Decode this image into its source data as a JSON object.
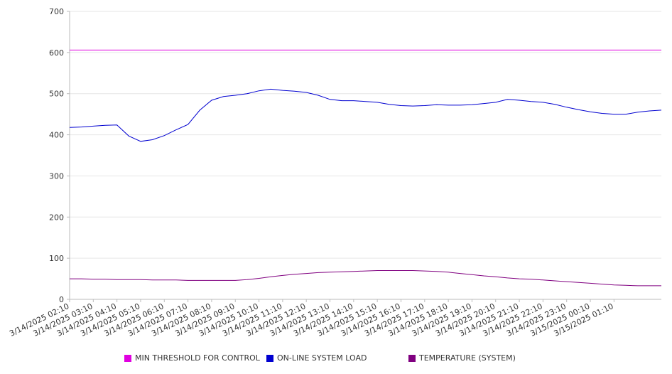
{
  "chart_data": {
    "type": "line",
    "ylim": [
      0,
      700
    ],
    "yticks": [
      0,
      100,
      200,
      300,
      400,
      500,
      600,
      700
    ],
    "grid": "horizontal",
    "legend_position": "bottom",
    "x_ticks": [
      "3/14/2025 02:10",
      "3/14/2025 03:10",
      "3/14/2025 04:10",
      "3/14/2025 05:10",
      "3/14/2025 06:10",
      "3/14/2025 07:10",
      "3/14/2025 08:10",
      "3/14/2025 09:10",
      "3/14/2025 10:10",
      "3/14/2025 11:10",
      "3/14/2025 12:10",
      "3/14/2025 13:10",
      "3/14/2025 14:10",
      "3/14/2025 15:10",
      "3/14/2025 16:10",
      "3/14/2025 17:10",
      "3/14/2025 18:10",
      "3/14/2025 19:10",
      "3/14/2025 20:10",
      "3/14/2025 21:10",
      "3/14/2025 22:10",
      "3/14/2025 23:10",
      "3/15/2025 00:10",
      "3/15/2025 01:10"
    ],
    "x": [
      "02:10",
      "02:40",
      "03:10",
      "03:40",
      "04:10",
      "04:20",
      "04:40",
      "05:10",
      "05:40",
      "06:10",
      "06:30",
      "06:40",
      "07:10",
      "07:40",
      "08:10",
      "08:40",
      "09:10",
      "09:40",
      "10:10",
      "10:40",
      "11:10",
      "11:40",
      "12:10",
      "12:40",
      "13:10",
      "13:40",
      "14:10",
      "14:40",
      "15:10",
      "15:40",
      "16:10",
      "16:40",
      "17:10",
      "17:40",
      "18:10",
      "18:40",
      "19:10",
      "19:40",
      "20:10",
      "20:40",
      "21:10",
      "21:40",
      "22:10",
      "22:40",
      "23:10",
      "23:40",
      "00:10",
      "00:40",
      "01:10",
      "01:40",
      "02:10"
    ],
    "series": [
      {
        "name": "MIN THRESHOLD FOR CONTROL",
        "color": "#e000e0",
        "values": [
          606,
          606,
          606,
          606,
          606,
          606,
          606,
          606,
          606,
          606,
          606,
          606,
          606,
          606,
          606,
          606,
          606,
          606,
          606,
          606,
          606,
          606,
          606,
          606,
          606,
          606,
          606,
          606,
          606,
          606,
          606,
          606,
          606,
          606,
          606,
          606,
          606,
          606,
          606,
          606,
          606,
          606,
          606,
          606,
          606,
          606,
          606,
          606,
          606,
          606,
          606
        ]
      },
      {
        "name": "ON-LINE SYSTEM LOAD",
        "color": "#0000d0",
        "values": [
          418,
          419,
          421,
          423,
          424,
          397,
          384,
          388,
          398,
          412,
          425,
          460,
          484,
          493,
          496,
          500,
          507,
          511,
          508,
          506,
          503,
          496,
          486,
          483,
          483,
          481,
          479,
          474,
          471,
          470,
          471,
          473,
          472,
          472,
          473,
          476,
          479,
          486,
          484,
          481,
          479,
          474,
          467,
          461,
          456,
          452,
          450,
          450,
          455,
          458,
          460
        ]
      },
      {
        "name": "TEMPERATURE (SYSTEM)",
        "color": "#800080",
        "values": [
          50,
          50,
          49,
          49,
          48,
          48,
          48,
          47,
          47,
          47,
          46,
          46,
          46,
          46,
          46,
          48,
          51,
          55,
          58,
          61,
          63,
          65,
          66,
          67,
          68,
          69,
          70,
          70,
          70,
          70,
          69,
          68,
          66,
          63,
          60,
          57,
          55,
          52,
          50,
          49,
          47,
          45,
          43,
          41,
          39,
          37,
          35,
          34,
          33,
          33,
          33
        ]
      }
    ]
  }
}
